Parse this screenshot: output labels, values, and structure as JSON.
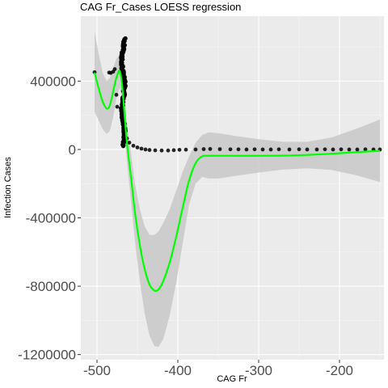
{
  "chart_data": {
    "type": "scatter",
    "title": "CAG Fr_Cases LOESS regression",
    "xlabel": "CAG Fr",
    "ylabel": "Infection Cases",
    "xlim": [
      -520,
      -145
    ],
    "ylim": [
      -1230000,
      780000
    ],
    "x_ticks": [
      -500,
      -400,
      -300,
      -200
    ],
    "x_tick_labels": [
      "-500",
      "-400",
      "-300",
      "-200"
    ],
    "y_ticks": [
      400000,
      0,
      -400000,
      -800000,
      -1200000
    ],
    "y_tick_labels": [
      "400000",
      "0",
      "-400000",
      "-800000",
      "-1200000"
    ],
    "grid": true,
    "legend": "none",
    "colors": {
      "panel": "#ebebeb",
      "grid": "#ffffff",
      "points": "#000000",
      "fit": "#00ff00",
      "band": "#c8c8c8"
    },
    "points": [
      [
        -503,
        452000
      ],
      [
        -485,
        450000
      ],
      [
        -483,
        448000
      ],
      [
        -480,
        455000
      ],
      [
        -478,
        470000
      ],
      [
        -476,
        320000
      ],
      [
        -475,
        250000
      ],
      [
        -463,
        65000
      ],
      [
        -460,
        40000
      ],
      [
        -455,
        22000
      ],
      [
        -450,
        12000
      ],
      [
        -445,
        5000
      ],
      [
        -440,
        0
      ],
      [
        -435,
        -3000
      ],
      [
        -428,
        -5000
      ],
      [
        -420,
        -6000
      ],
      [
        -412,
        -6000
      ],
      [
        -405,
        -4000
      ],
      [
        -398,
        -2000
      ],
      [
        -390,
        -1000
      ],
      [
        -378,
        0
      ],
      [
        -368,
        2000
      ],
      [
        -360,
        3000
      ],
      [
        -348,
        2000
      ],
      [
        -335,
        1000
      ],
      [
        -325,
        1000
      ],
      [
        -315,
        0
      ],
      [
        -305,
        1000
      ],
      [
        -295,
        0
      ],
      [
        -285,
        0
      ],
      [
        -275,
        1000
      ],
      [
        -262,
        0
      ],
      [
        -250,
        1000
      ],
      [
        -240,
        0
      ],
      [
        -228,
        0
      ],
      [
        -218,
        1000
      ],
      [
        -208,
        0
      ],
      [
        -198,
        1000
      ],
      [
        -188,
        0
      ],
      [
        -178,
        0
      ],
      [
        -168,
        1000
      ],
      [
        -158,
        0
      ],
      [
        -150,
        0
      ]
    ],
    "dense_cluster": {
      "x_range": [
        -472,
        -463
      ],
      "y_range": [
        20000,
        650000
      ],
      "count": 160
    },
    "fit": [
      [
        -503,
        450000
      ],
      [
        -498,
        360000
      ],
      [
        -493,
        280000
      ],
      [
        -488,
        240000
      ],
      [
        -484,
        260000
      ],
      [
        -480,
        340000
      ],
      [
        -476,
        420000
      ],
      [
        -472,
        460000
      ],
      [
        -469,
        380000
      ],
      [
        -466,
        210000
      ],
      [
        -463,
        40000
      ],
      [
        -458,
        -160000
      ],
      [
        -453,
        -370000
      ],
      [
        -447,
        -560000
      ],
      [
        -441,
        -700000
      ],
      [
        -435,
        -790000
      ],
      [
        -429,
        -825000
      ],
      [
        -424,
        -820000
      ],
      [
        -418,
        -770000
      ],
      [
        -410,
        -660000
      ],
      [
        -402,
        -510000
      ],
      [
        -394,
        -340000
      ],
      [
        -386,
        -180000
      ],
      [
        -378,
        -80000
      ],
      [
        -370,
        -40000
      ],
      [
        -362,
        -37000
      ],
      [
        -350,
        -37000
      ],
      [
        -330,
        -37000
      ],
      [
        -300,
        -37000
      ],
      [
        -270,
        -36000
      ],
      [
        -240,
        -32000
      ],
      [
        -210,
        -25000
      ],
      [
        -180,
        -16000
      ],
      [
        -150,
        -8000
      ]
    ],
    "band_upper": [
      [
        -503,
        690000
      ],
      [
        -498,
        560000
      ],
      [
        -493,
        450000
      ],
      [
        -488,
        400000
      ],
      [
        -484,
        420000
      ],
      [
        -480,
        480000
      ],
      [
        -476,
        530000
      ],
      [
        -472,
        555000
      ],
      [
        -469,
        470000
      ],
      [
        -466,
        310000
      ],
      [
        -463,
        150000
      ],
      [
        -458,
        -20000
      ],
      [
        -453,
        -200000
      ],
      [
        -447,
        -350000
      ],
      [
        -441,
        -450000
      ],
      [
        -435,
        -500000
      ],
      [
        -429,
        -500000
      ],
      [
        -424,
        -480000
      ],
      [
        -418,
        -430000
      ],
      [
        -410,
        -350000
      ],
      [
        -402,
        -240000
      ],
      [
        -394,
        -130000
      ],
      [
        -386,
        -40000
      ],
      [
        -378,
        40000
      ],
      [
        -370,
        85000
      ],
      [
        -362,
        100000
      ],
      [
        -350,
        95000
      ],
      [
        -330,
        80000
      ],
      [
        -300,
        60000
      ],
      [
        -270,
        45000
      ],
      [
        -240,
        45000
      ],
      [
        -210,
        70000
      ],
      [
        -180,
        120000
      ],
      [
        -150,
        175000
      ]
    ],
    "band_lower": [
      [
        -503,
        220000
      ],
      [
        -498,
        170000
      ],
      [
        -493,
        120000
      ],
      [
        -488,
        90000
      ],
      [
        -484,
        110000
      ],
      [
        -480,
        190000
      ],
      [
        -476,
        300000
      ],
      [
        -472,
        360000
      ],
      [
        -469,
        290000
      ],
      [
        -466,
        110000
      ],
      [
        -463,
        -70000
      ],
      [
        -458,
        -300000
      ],
      [
        -453,
        -540000
      ],
      [
        -447,
        -770000
      ],
      [
        -441,
        -960000
      ],
      [
        -435,
        -1090000
      ],
      [
        -429,
        -1150000
      ],
      [
        -424,
        -1155000
      ],
      [
        -418,
        -1110000
      ],
      [
        -410,
        -970000
      ],
      [
        -402,
        -780000
      ],
      [
        -394,
        -550000
      ],
      [
        -386,
        -320000
      ],
      [
        -378,
        -200000
      ],
      [
        -370,
        -160000
      ],
      [
        -362,
        -170000
      ],
      [
        -350,
        -170000
      ],
      [
        -330,
        -155000
      ],
      [
        -300,
        -135000
      ],
      [
        -270,
        -117000
      ],
      [
        -240,
        -110000
      ],
      [
        -210,
        -120000
      ],
      [
        -180,
        -150000
      ],
      [
        -150,
        -190000
      ]
    ]
  }
}
